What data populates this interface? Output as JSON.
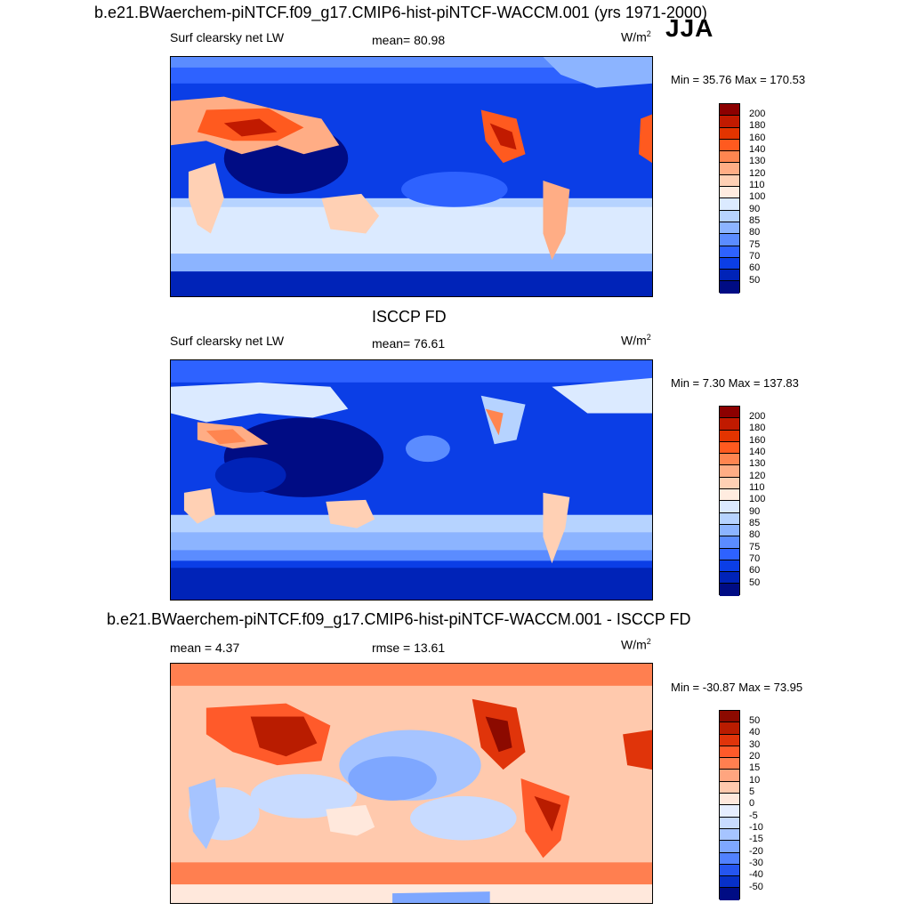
{
  "header": {
    "title": "b.e21.BWaerchem-piNTCF.f09_g17.CMIP6-hist-piNTCF-WACCM.001 (yrs 1971-2000)",
    "season": "JJA"
  },
  "panels": [
    {
      "left_label": "Surf clearsky net LW",
      "center_label": "mean=  80.98",
      "units": "W/m",
      "units_sup": "2",
      "minmax": "Min =  35.76 Max = 170.53",
      "colorbar": {
        "labels": [
          "200",
          "180",
          "160",
          "140",
          "130",
          "120",
          "110",
          "100",
          "90",
          "85",
          "80",
          "75",
          "70",
          "60",
          "50"
        ],
        "colors": [
          "#8c0000",
          "#c11a00",
          "#e33400",
          "#ff5a1f",
          "#ff8550",
          "#ffad85",
          "#ffd0b4",
          "#ffece0",
          "#dbeaff",
          "#b6d3ff",
          "#8cb4ff",
          "#5b8cff",
          "#2e62ff",
          "#0b3ee6",
          "#0023b8",
          "#000c84"
        ]
      }
    },
    {
      "mid_title": "ISCCP FD",
      "left_label": "Surf clearsky net LW",
      "center_label": "mean=  76.61",
      "units": "W/m",
      "units_sup": "2",
      "minmax": "Min =   7.30 Max = 137.83",
      "colorbar": {
        "labels": [
          "200",
          "180",
          "160",
          "140",
          "130",
          "120",
          "110",
          "100",
          "90",
          "85",
          "80",
          "75",
          "70",
          "60",
          "50"
        ],
        "colors": [
          "#8c0000",
          "#c11a00",
          "#e33400",
          "#ff5a1f",
          "#ff8550",
          "#ffad85",
          "#ffd0b4",
          "#ffece0",
          "#dbeaff",
          "#b6d3ff",
          "#8cb4ff",
          "#5b8cff",
          "#2e62ff",
          "#0b3ee6",
          "#0023b8",
          "#000c84"
        ]
      }
    },
    {
      "mid_title": "b.e21.BWaerchem-piNTCF.f09_g17.CMIP6-hist-piNTCF-WACCM.001 - ISCCP FD",
      "left_label": "mean =   4.37",
      "center_label": "rmse =  13.61",
      "units": "W/m",
      "units_sup": "2",
      "minmax": "Min = -30.87 Max =  73.95",
      "colorbar": {
        "labels": [
          "50",
          "40",
          "30",
          "20",
          "15",
          "10",
          "5",
          "0",
          "-5",
          "-10",
          "-15",
          "-20",
          "-30",
          "-40",
          "-50"
        ],
        "colors": [
          "#8c0a00",
          "#b91c00",
          "#e0340a",
          "#ff5a2a",
          "#ff7f50",
          "#ffa57f",
          "#ffc9ad",
          "#ffe8dc",
          "#e6eeff",
          "#c8dbff",
          "#a6c4ff",
          "#7ea7ff",
          "#5181ff",
          "#2555f0",
          "#0730c8",
          "#000c84"
        ]
      }
    }
  ]
}
